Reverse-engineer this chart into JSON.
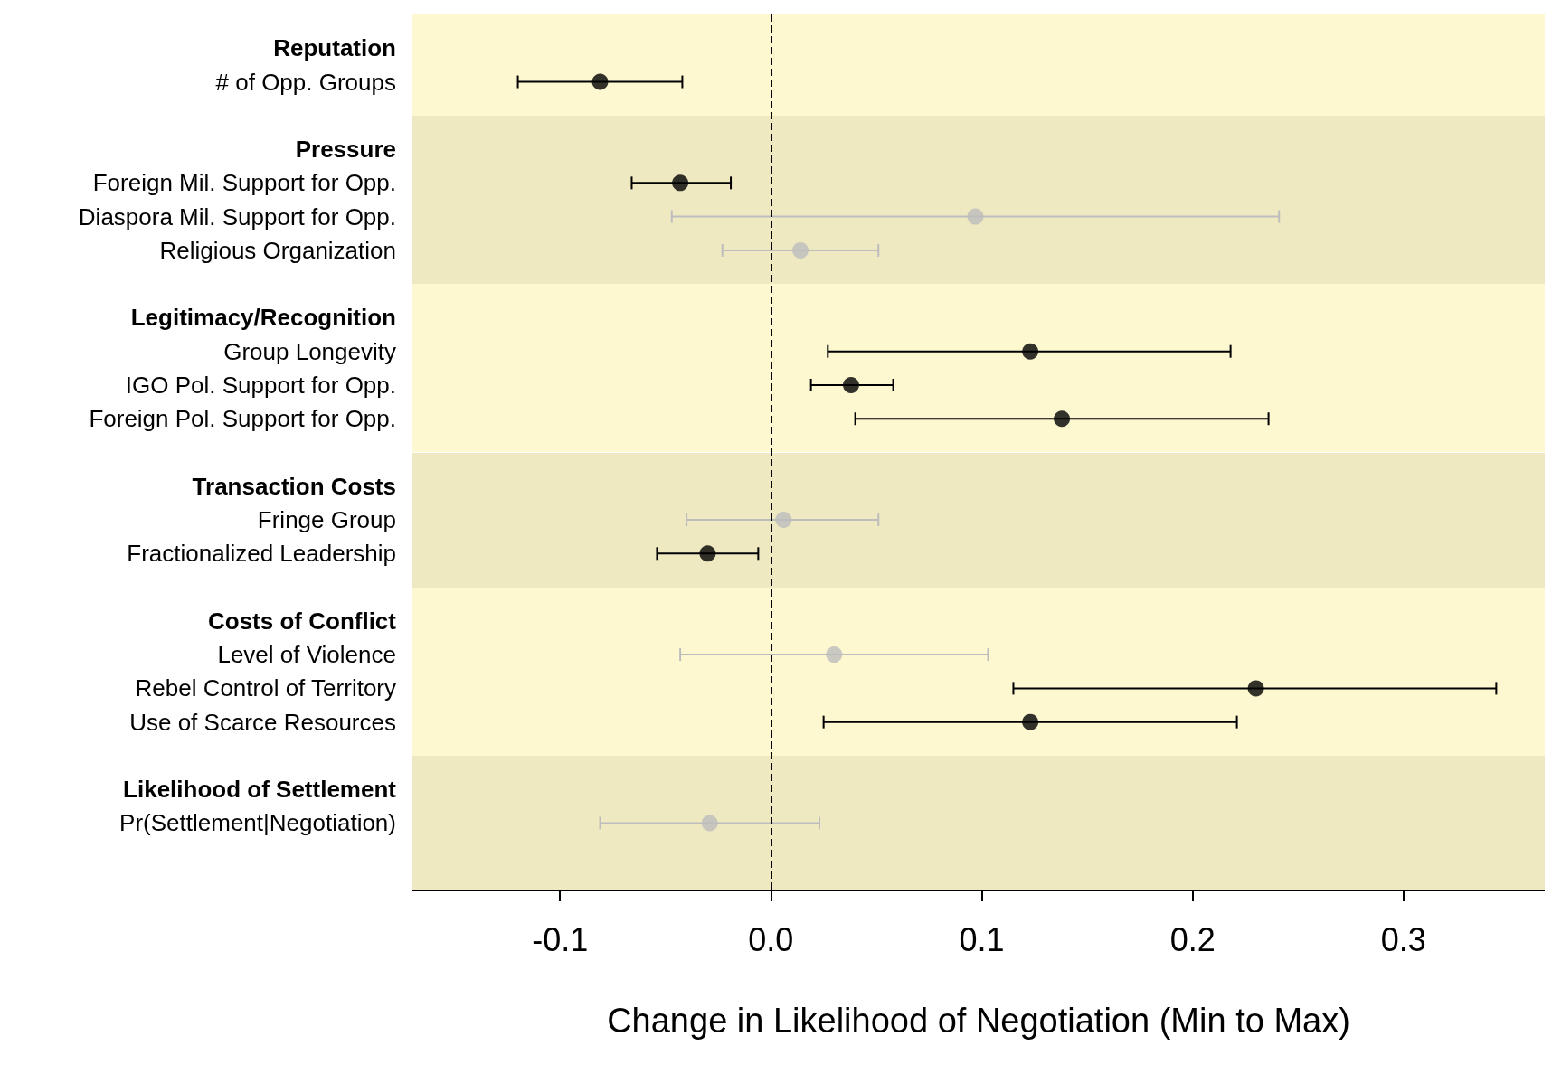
{
  "chart_data": {
    "type": "scatter",
    "orientation": "horizontal",
    "categories": [
      null,
      "Reputation",
      "# of Opp. Groups",
      null,
      "Pressure",
      "Foreign Mil. Support for Opp.",
      "Diaspora Mil. Support for Opp.",
      "Religious Organization",
      null,
      "Legitimacy/Recognition",
      "Group Longevity",
      "IGO Pol. Support for Opp.",
      "Foreign Pol. Support for Opp.",
      null,
      "Transaction Costs",
      "Fringe Group",
      "Fractionalized Leadership",
      null,
      "Costs of Conflict",
      "Level of Violence",
      "Rebel Control of Territory",
      "Use of Scarce Resources",
      null,
      "Likelihood of Settlement",
      "Pr(Settlement|Negotiation)",
      null,
      null
    ],
    "series": [
      {
        "color": "#000000",
        "values": [
          null,
          null,
          -0.081,
          null,
          null,
          -0.043,
          null,
          null,
          null,
          null,
          0.123,
          0.038,
          0.138,
          null,
          null,
          null,
          -0.03,
          null,
          null,
          null,
          0.23,
          0.123,
          null,
          null,
          null,
          null,
          null
        ],
        "errors": [
          null,
          null,
          [
            -0.12,
            -0.042
          ],
          null,
          null,
          [
            -0.066,
            -0.019
          ],
          null,
          null,
          null,
          null,
          [
            0.027,
            0.218
          ],
          [
            0.019,
            0.058
          ],
          [
            0.04,
            0.236
          ],
          null,
          null,
          null,
          [
            -0.054,
            -0.006
          ],
          null,
          null,
          null,
          [
            0.115,
            0.344
          ],
          [
            0.025,
            0.221
          ],
          null,
          null,
          null,
          null,
          null
        ]
      },
      {
        "color": "#bdbdbd",
        "values": [
          null,
          null,
          null,
          null,
          null,
          null,
          0.097,
          0.014,
          null,
          null,
          null,
          null,
          null,
          null,
          null,
          0.006,
          null,
          null,
          null,
          0.03,
          null,
          null,
          null,
          null,
          -0.029,
          null,
          null
        ],
        "errors": [
          null,
          null,
          null,
          null,
          null,
          null,
          [
            -0.047,
            0.241
          ],
          [
            -0.023,
            0.051
          ],
          null,
          null,
          null,
          null,
          null,
          null,
          null,
          [
            -0.04,
            0.051
          ],
          null,
          null,
          null,
          [
            -0.043,
            0.103
          ],
          null,
          null,
          null,
          null,
          [
            -0.081,
            0.023
          ],
          null,
          null
        ]
      }
    ],
    "xlim": [
      -0.17,
      0.367
    ],
    "xticks": [
      {
        "value": -0.1,
        "label": "-0.1"
      },
      {
        "value": 0,
        "label": "0.0"
      },
      {
        "value": 0.1,
        "label": "0.1"
      },
      {
        "value": 0.2,
        "label": "0.2"
      },
      {
        "value": 0.3,
        "label": "0.3"
      }
    ],
    "xlabel": "Change in Likelihood of Negotiation (Min to Max)",
    "ref_lines": [
      {
        "axis": "x",
        "value": 0,
        "color": "#000000",
        "line_style": "dashed"
      }
    ],
    "grid": false,
    "marker": "circle"
  }
}
